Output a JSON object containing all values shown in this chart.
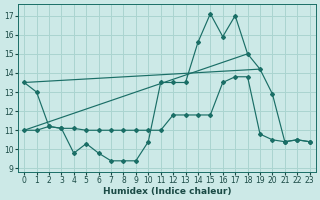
{
  "bg_color": "#cce9e7",
  "grid_color": "#aad4d0",
  "line_color": "#1a6e66",
  "xlabel": "Humidex (Indice chaleur)",
  "xlim": [
    -0.5,
    23.5
  ],
  "ylim": [
    8.8,
    17.6
  ],
  "yticks": [
    9,
    10,
    11,
    12,
    13,
    14,
    15,
    16,
    17
  ],
  "xticks": [
    0,
    1,
    2,
    3,
    4,
    5,
    6,
    7,
    8,
    9,
    10,
    11,
    12,
    13,
    14,
    15,
    16,
    17,
    18,
    19,
    20,
    21,
    22,
    23
  ],
  "s1_x": [
    0,
    1,
    2,
    3,
    4,
    5,
    6,
    7,
    8,
    9,
    10,
    11,
    12,
    13,
    14,
    15,
    16,
    17,
    18,
    19,
    20,
    21,
    22,
    23
  ],
  "s1_y": [
    13.5,
    13.0,
    11.2,
    11.1,
    9.8,
    10.3,
    9.8,
    9.4,
    9.4,
    9.4,
    10.4,
    13.5,
    13.5,
    13.5,
    15.6,
    17.1,
    15.9,
    17.0,
    15.0,
    14.2,
    12.9,
    10.4,
    10.5,
    10.4
  ],
  "s2_x": [
    0,
    1,
    2,
    3,
    4,
    5,
    6,
    7,
    8,
    9,
    10,
    11,
    12,
    13,
    14,
    15,
    16,
    17,
    18,
    19,
    20,
    21,
    22,
    23
  ],
  "s2_y": [
    11.0,
    11.0,
    11.2,
    11.1,
    11.1,
    11.0,
    11.0,
    11.0,
    11.0,
    11.0,
    11.0,
    11.0,
    11.8,
    11.8,
    11.8,
    11.8,
    13.5,
    13.8,
    13.8,
    10.8,
    10.5,
    10.4,
    10.5,
    10.4
  ],
  "trend1_x": [
    0,
    19
  ],
  "trend1_y": [
    13.5,
    14.2
  ],
  "trend2_x": [
    0,
    18
  ],
  "trend2_y": [
    11.0,
    15.0
  ]
}
